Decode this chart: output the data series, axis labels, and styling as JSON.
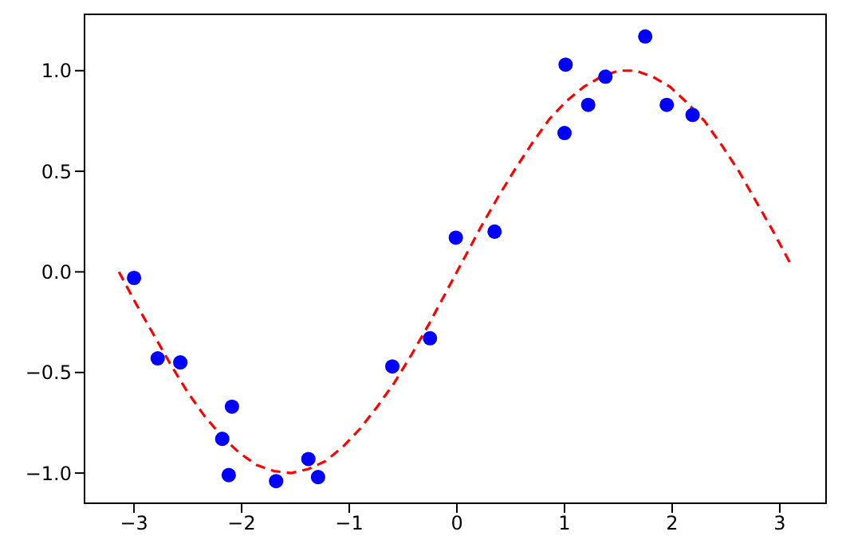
{
  "chart_data": {
    "type": "scatter",
    "xlim": [
      -3.46,
      3.43
    ],
    "ylim": [
      -1.15,
      1.28
    ],
    "xticks": [
      {
        "value": -3,
        "label": "−3"
      },
      {
        "value": -2,
        "label": "−2"
      },
      {
        "value": -1,
        "label": "−1"
      },
      0,
      1,
      2,
      3
    ],
    "yticks": [
      {
        "value": -1,
        "label": "−1.0"
      },
      {
        "value": -0.5,
        "label": "−0.5"
      },
      {
        "value": 0,
        "label": "0.0"
      },
      {
        "value": 0.5,
        "label": "0.5"
      },
      {
        "value": 1,
        "label": "1.0"
      }
    ],
    "grid": false,
    "legend": false,
    "series": [
      {
        "type": "line",
        "color": "#ff0000",
        "line_style": "dashed",
        "marker": "none",
        "x": [
          -3.14,
          -2.98,
          -2.82,
          -2.66,
          -2.5,
          -2.34,
          -2.18,
          -2.02,
          -1.86,
          -1.7,
          -1.54,
          -1.38,
          -1.22,
          -1.06,
          -0.9,
          -0.74,
          -0.58,
          -0.42,
          -0.26,
          -0.1,
          0.06,
          0.22,
          0.38,
          0.54,
          0.7,
          0.86,
          1.02,
          1.18,
          1.34,
          1.5,
          1.66,
          1.82,
          1.98,
          2.14,
          2.3,
          2.46,
          2.62,
          2.78,
          2.94,
          3.1
        ],
        "values": [
          0,
          -0.16,
          -0.31,
          -0.46,
          -0.6,
          -0.72,
          -0.82,
          -0.9,
          -0.96,
          -0.99,
          -1,
          -0.98,
          -0.94,
          -0.87,
          -0.78,
          -0.67,
          -0.55,
          -0.41,
          -0.26,
          -0.1,
          0.06,
          0.22,
          0.37,
          0.51,
          0.64,
          0.76,
          0.85,
          0.92,
          0.97,
          1,
          1,
          0.97,
          0.92,
          0.84,
          0.75,
          0.63,
          0.5,
          0.35,
          0.2,
          0.04
        ]
      },
      {
        "color": "#0000ff",
        "marker": "circle",
        "x": [
          -3,
          -2.78,
          -2.57,
          -2.09,
          -2.18,
          -2.12,
          -1.68,
          -1.38,
          -1.29,
          -0.6,
          -0.25,
          -0.01,
          0.35,
          1.01,
          1,
          1.22,
          1.38,
          1.75,
          1.95,
          2.19
        ],
        "values": [
          -0.03,
          -0.43,
          -0.45,
          -0.67,
          -0.83,
          -1.01,
          -1.04,
          -0.93,
          -1.02,
          -0.47,
          -0.33,
          0.17,
          0.2,
          1.03,
          0.69,
          0.83,
          0.97,
          1.17,
          0.83,
          0.78
        ]
      }
    ]
  }
}
